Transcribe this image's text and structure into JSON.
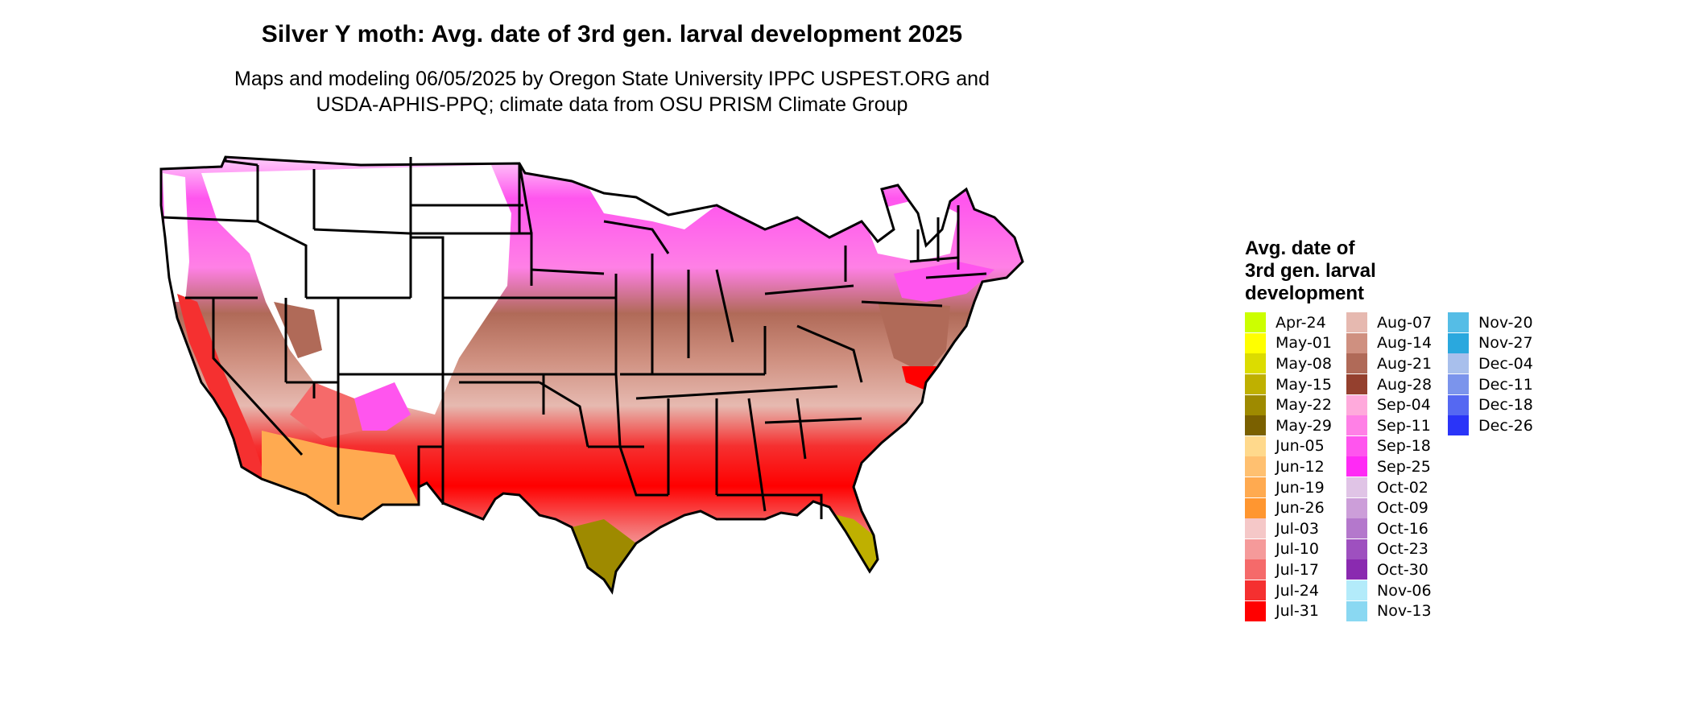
{
  "header": {
    "title": "Silver Y moth: Avg. date of 3rd gen. larval development 2025",
    "subtitle_line1": "Maps and modeling 06/05/2025 by Oregon State University IPPC USPEST.ORG and",
    "subtitle_line2": "USDA-APHIS-PPQ; climate data from OSU PRISM Climate Group"
  },
  "legend": {
    "title_line1": "Avg. date of",
    "title_line2": "3rd gen. larval",
    "title_line3": "development",
    "columns": [
      [
        {
          "label": "Apr-24",
          "color": "#CCFF00"
        },
        {
          "label": "May-01",
          "color": "#FFFF00"
        },
        {
          "label": "May-08",
          "color": "#DCDC00"
        },
        {
          "label": "May-15",
          "color": "#BFB000"
        },
        {
          "label": "May-22",
          "color": "#9E8A00"
        },
        {
          "label": "May-29",
          "color": "#7A6000"
        },
        {
          "label": "Jun-05",
          "color": "#FFD98C"
        },
        {
          "label": "Jun-12",
          "color": "#FFC070"
        },
        {
          "label": "Jun-19",
          "color": "#FFAA50"
        },
        {
          "label": "Jun-26",
          "color": "#FF9630"
        },
        {
          "label": "Jul-03",
          "color": "#F5C8C8"
        },
        {
          "label": "Jul-10",
          "color": "#F59A9A"
        },
        {
          "label": "Jul-17",
          "color": "#F56A6A"
        },
        {
          "label": "Jul-24",
          "color": "#F53030"
        },
        {
          "label": "Jul-31",
          "color": "#FF0000"
        }
      ],
      [
        {
          "label": "Aug-07",
          "color": "#E6B9B0"
        },
        {
          "label": "Aug-14",
          "color": "#CF9080"
        },
        {
          "label": "Aug-21",
          "color": "#B06A58"
        },
        {
          "label": "Aug-28",
          "color": "#94402E"
        },
        {
          "label": "Sep-04",
          "color": "#FFAADC"
        },
        {
          "label": "Sep-11",
          "color": "#FF80E6"
        },
        {
          "label": "Sep-18",
          "color": "#FF55EE"
        },
        {
          "label": "Sep-25",
          "color": "#FF2AF5"
        },
        {
          "label": "Oct-02",
          "color": "#E0C4E6"
        },
        {
          "label": "Oct-09",
          "color": "#CC9ED9"
        },
        {
          "label": "Oct-16",
          "color": "#B478CC"
        },
        {
          "label": "Oct-23",
          "color": "#9E50BF"
        },
        {
          "label": "Oct-30",
          "color": "#8A2AB0"
        },
        {
          "label": "Nov-06",
          "color": "#B3EBFA"
        },
        {
          "label": "Nov-13",
          "color": "#8AD8F2"
        }
      ],
      [
        {
          "label": "Nov-20",
          "color": "#55BDE6"
        },
        {
          "label": "Nov-27",
          "color": "#2AA8DE"
        },
        {
          "label": "Dec-04",
          "color": "#A8BFEC"
        },
        {
          "label": "Dec-11",
          "color": "#7B94EC"
        },
        {
          "label": "Dec-18",
          "color": "#5568F2"
        },
        {
          "label": "Dec-26",
          "color": "#2A34F8"
        }
      ]
    ]
  }
}
